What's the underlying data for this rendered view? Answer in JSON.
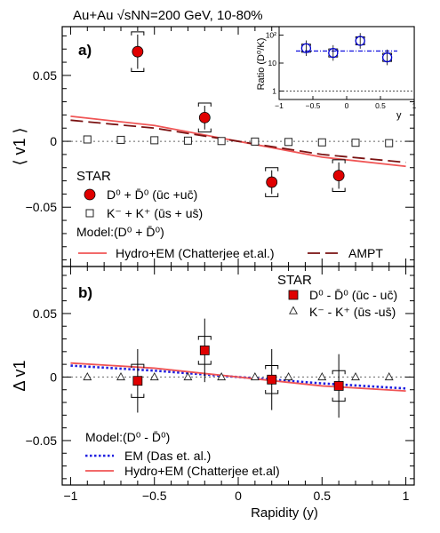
{
  "header": "Au+Au √sNN=200 GeV, 10-80%",
  "chart_data": [
    {
      "panel": "a)",
      "type": "scatter",
      "xlabel": "",
      "ylabel": "⟨ v1 ⟩",
      "xlim": [
        -1.05,
        1.05
      ],
      "ylim": [
        -0.095,
        0.087
      ],
      "yticks": [
        "0.05",
        "0",
        "−0.05"
      ],
      "zero_line": true,
      "series": [
        {
          "name": "D0 + D0bar (ūc + uc̄)",
          "label": "D⁰ + D̄⁰ (ūc +uc̄)",
          "marker": "filled-circle",
          "color": "#e00000",
          "x": [
            -0.6,
            -0.2,
            0.2,
            0.6
          ],
          "y": [
            0.068,
            0.018,
            -0.031,
            -0.026
          ],
          "stat_err": [
            0.013,
            0.009,
            0.009,
            0.01
          ],
          "sys_err": [
            0.015,
            0.011,
            0.011,
            0.012
          ]
        },
        {
          "name": "K− + K+ (ūs + us̄)",
          "label": "K⁻ + K⁺ (ūs + us̄)",
          "marker": "open-square",
          "color": "#000000",
          "x": [
            -0.9,
            -0.7,
            -0.5,
            -0.3,
            -0.1,
            0.1,
            0.3,
            0.5,
            0.7,
            0.9
          ],
          "y": [
            0.0014,
            0.0011,
            0.0008,
            0.0005,
            0.0002,
            -0.0002,
            -0.0005,
            -0.0008,
            -0.0011,
            -0.0014
          ]
        },
        {
          "name": "Hydro+EM (Chatterjee et.al.)",
          "label": "Hydro+EM (Chatterjee et.al.)",
          "style": "solid",
          "color": "#f05555",
          "x": [
            -1.0,
            -0.5,
            0,
            0.5,
            1.0
          ],
          "y": [
            0.019,
            0.012,
            0.0,
            -0.012,
            -0.019
          ]
        },
        {
          "name": "AMPT",
          "label": "AMPT",
          "style": "dashed",
          "color": "#7a1212",
          "x": [
            -1.0,
            -0.5,
            0,
            0.5,
            1.0
          ],
          "y": [
            0.016,
            0.01,
            0.0,
            -0.01,
            -0.016
          ]
        }
      ],
      "legend": {
        "group_title": "STAR",
        "model_title": "Model:(D⁰ + D̄⁰)"
      },
      "inset": {
        "type": "scatter",
        "ylabel": "Ratio (D⁰/K)",
        "xlabel": "y",
        "xlim": [
          -1,
          1
        ],
        "log_y": true,
        "ylim": [
          0.5,
          200
        ],
        "xticks": [
          "−1",
          "−0.5",
          "0",
          "0.5",
          "1"
        ],
        "yticks": [
          "1",
          "10",
          "10²"
        ],
        "reference_line": 1,
        "fit_line": 27,
        "series": [
          {
            "name": "Ratio (D⁰/K)",
            "marker": "open-circle",
            "color": "#0000cc",
            "x": [
              -0.6,
              -0.2,
              0.2,
              0.6
            ],
            "y": [
              34,
              23,
              62,
              16
            ]
          }
        ]
      }
    },
    {
      "panel": "b)",
      "type": "scatter",
      "xlabel": "Rapidity (y)",
      "ylabel": "Δ v1",
      "xlim": [
        -1.05,
        1.05
      ],
      "ylim": [
        -0.085,
        0.087
      ],
      "xticks": [
        "−1",
        "−0.5",
        "0",
        "0.5",
        "1"
      ],
      "yticks": [
        "0.05",
        "0",
        "−0.05"
      ],
      "zero_line": true,
      "series": [
        {
          "name": "D0 − D0bar (ūc − uc̄)",
          "label": "D⁰ - D̄⁰ (ūc - uc̄)",
          "marker": "filled-square",
          "color": "#e00000",
          "x": [
            -0.6,
            -0.2,
            0.2,
            0.6
          ],
          "y": [
            -0.003,
            0.021,
            -0.002,
            -0.007
          ],
          "stat_err": [
            0.025,
            0.025,
            0.024,
            0.025
          ],
          "sys_err": [
            0.013,
            0.011,
            0.011,
            0.012
          ]
        },
        {
          "name": "K− − K+ (ūs − us̄)",
          "label": "K⁻ - K⁺ (ūs -us̄)",
          "marker": "open-triangle",
          "color": "#000000",
          "x": [
            -0.9,
            -0.7,
            -0.5,
            -0.3,
            -0.1,
            0.1,
            0.3,
            0.5,
            0.7,
            0.9
          ],
          "y": [
            0,
            0,
            0,
            0,
            0,
            0,
            0,
            0,
            0,
            0
          ]
        },
        {
          "name": "EM (Das et. al.)",
          "label": "EM (Das et. al.)",
          "style": "dotted",
          "color": "#1f1fe0",
          "x": [
            -1.0,
            -0.5,
            0,
            0.5,
            1.0
          ],
          "y": [
            0.009,
            0.005,
            0.0,
            -0.005,
            -0.009
          ]
        },
        {
          "name": "Hydro+EM (Chatterjee et.al)",
          "label": "Hydro+EM (Chatterjee et.al)",
          "style": "solid",
          "color": "#f05555",
          "x": [
            -1.0,
            -0.5,
            0,
            0.5,
            1.0
          ],
          "y": [
            0.011,
            0.007,
            0.0,
            -0.007,
            -0.011
          ]
        }
      ],
      "legend": {
        "group_title": "STAR",
        "model_title": "Model:(D⁰ - D̄⁰)"
      }
    }
  ]
}
